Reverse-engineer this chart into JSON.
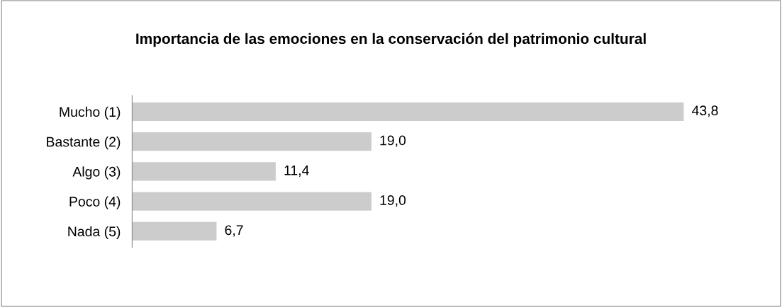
{
  "chart_data": {
    "type": "bar",
    "orientation": "horizontal",
    "title": "Importancia de las emociones en la conservación del patrimonio cultural",
    "categories": [
      "Mucho (1)",
      "Bastante (2)",
      "Algo (3)",
      "Poco (4)",
      "Nada (5)"
    ],
    "values": [
      43.8,
      19.0,
      11.4,
      19.0,
      6.7
    ],
    "value_labels": [
      "43,8",
      "19,0",
      "11,4",
      "19,0",
      "6,7"
    ],
    "color": "#cccccc",
    "tick_labels": "y",
    "grid": false,
    "legend": false
  }
}
